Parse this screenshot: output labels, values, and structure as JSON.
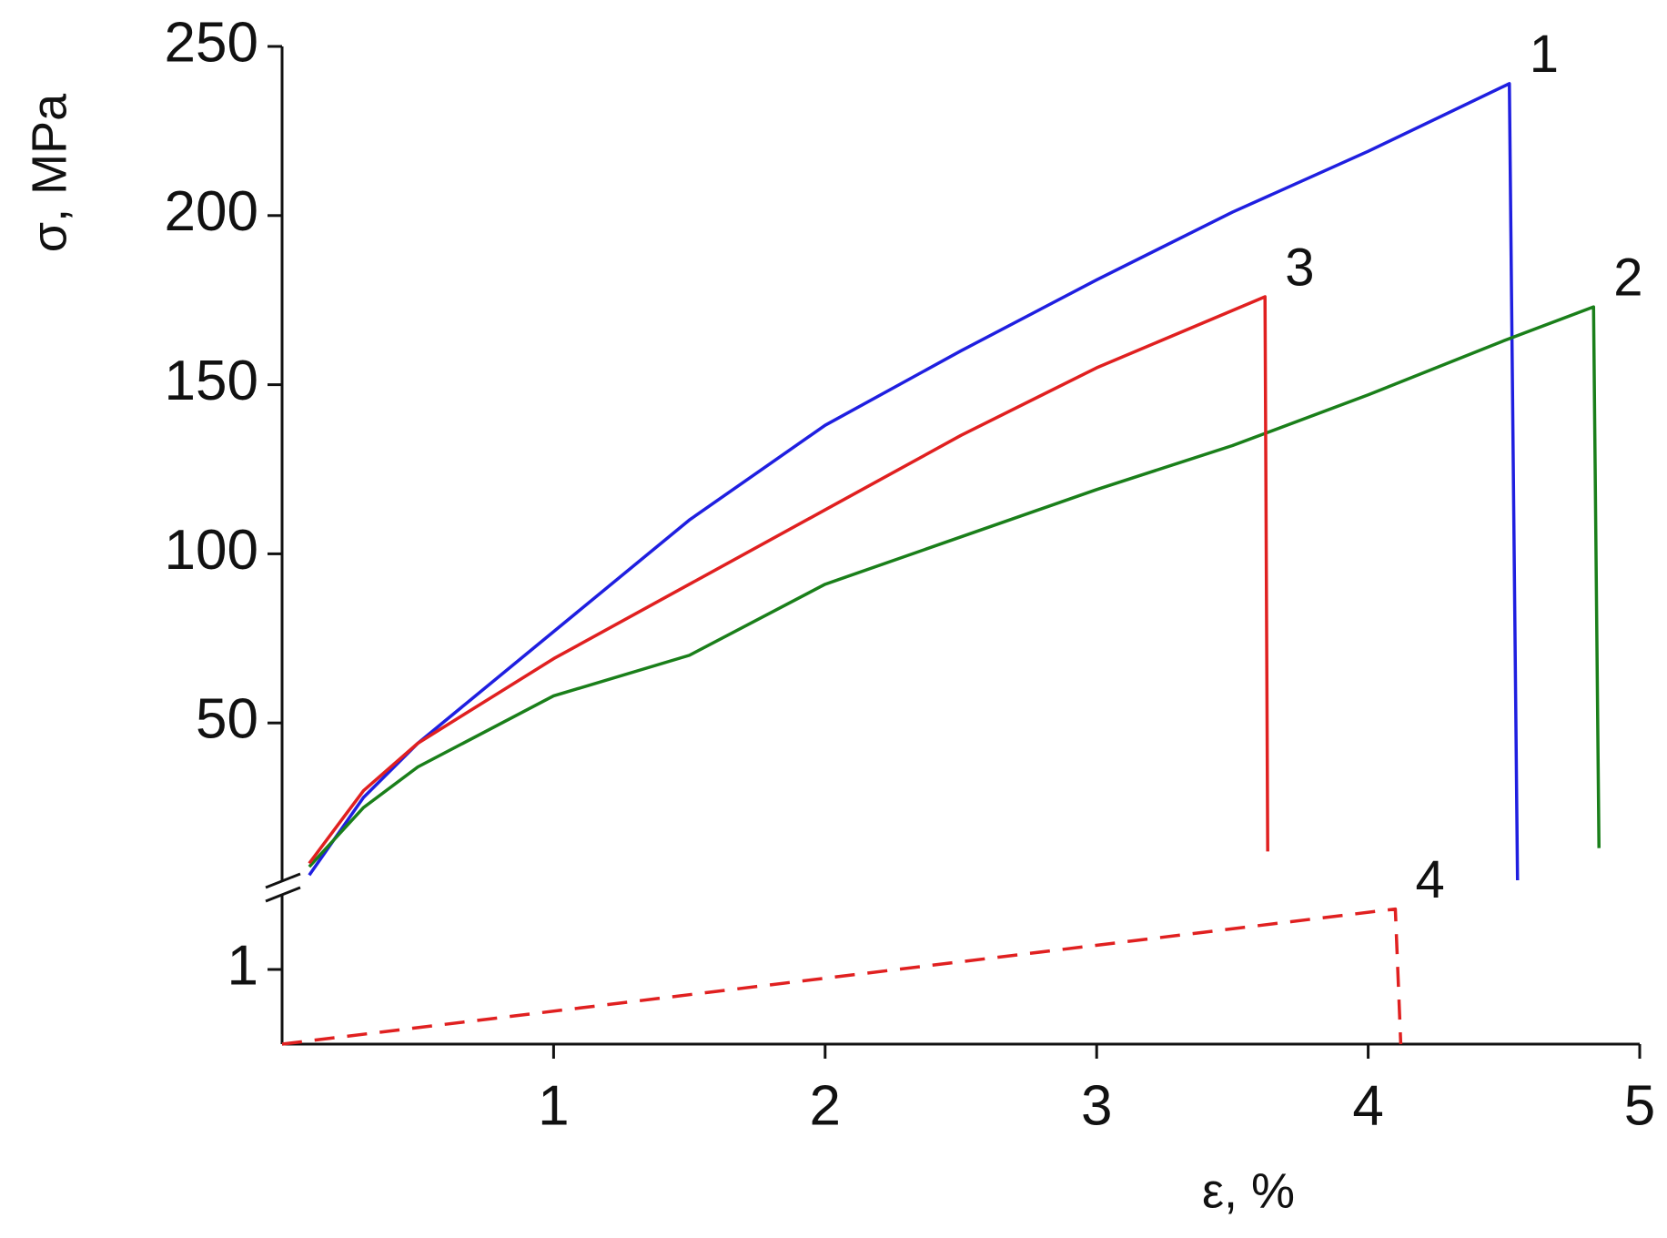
{
  "chart_data": [
    {
      "type": "line",
      "ylabel": "σ, MPa",
      "xlim": [
        0,
        5
      ],
      "ylim": [
        0,
        250
      ],
      "yticks": [
        50,
        100,
        150,
        200,
        250
      ],
      "series": [
        {
          "name": "1",
          "color": "#1f1fe0",
          "x": [
            0.1,
            0.3,
            0.5,
            1.0,
            1.5,
            2.0,
            2.5,
            3.0,
            3.5,
            4.0,
            4.52,
            4.55
          ],
          "values": [
            5,
            28,
            44,
            77,
            110,
            138,
            160,
            181,
            201,
            219,
            239,
            3.5
          ]
        },
        {
          "name": "2",
          "color": "#1a7f1a",
          "x": [
            0.1,
            0.3,
            0.5,
            1.0,
            1.5,
            2.0,
            2.5,
            3.0,
            3.5,
            4.0,
            4.5,
            4.83,
            4.85
          ],
          "values": [
            7.5,
            25,
            37,
            58,
            70,
            91,
            105,
            119,
            132,
            147,
            163,
            173,
            13
          ]
        },
        {
          "name": "3",
          "color": "#e02020",
          "x": [
            0.1,
            0.3,
            0.5,
            1.0,
            1.5,
            2.0,
            2.5,
            3.0,
            3.62,
            3.63
          ],
          "values": [
            8.5,
            30,
            44,
            69,
            91,
            113,
            135,
            155,
            176,
            12
          ]
        }
      ]
    },
    {
      "type": "line",
      "xlabel": "ε, %",
      "xlim": [
        0,
        5
      ],
      "xticks": [
        1,
        2,
        3,
        4,
        5
      ],
      "ylim": [
        0,
        2
      ],
      "yticks": [
        1
      ],
      "series": [
        {
          "name": "4",
          "color": "#e02020",
          "dash": true,
          "x": [
            0,
            4.1,
            4.12
          ],
          "values": [
            0,
            1.81,
            0
          ]
        }
      ]
    }
  ]
}
